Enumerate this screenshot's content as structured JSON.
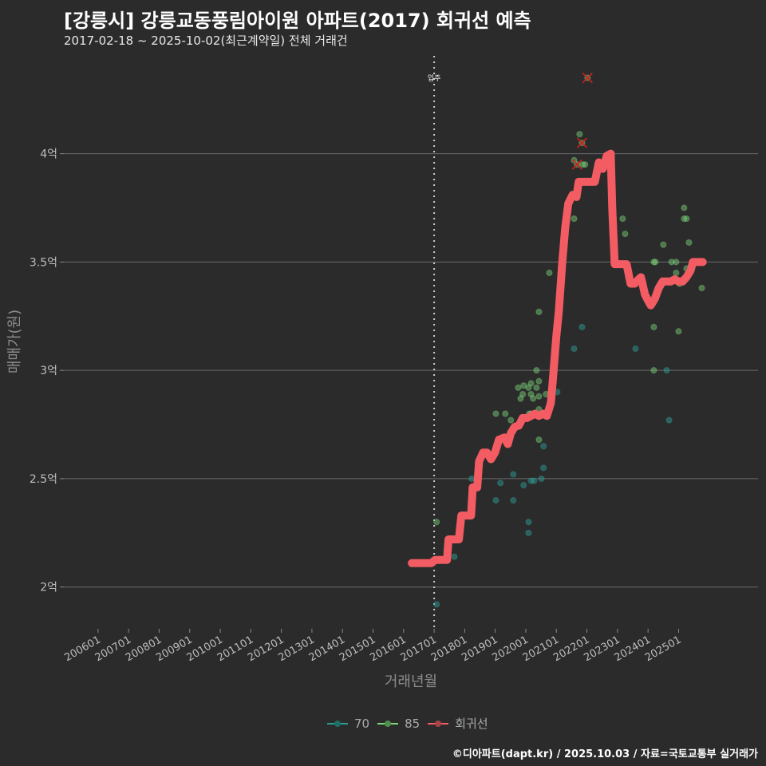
{
  "chart_data": {
    "type": "scatter",
    "title": "[강릉시] 강릉교동풍림아이원 아파트(2017) 회귀선 예측",
    "subtitle": "2017-02-18 ~ 2025-10-02(최근계약일) 전체 거래건",
    "xlabel": "거래년월",
    "ylabel": "매매가(원)",
    "xlim": [
      2004.88,
      2027.6
    ],
    "ylim": [
      1.8,
      4.47
    ],
    "y_unit": "억",
    "grid": "horizontal",
    "yticks": [
      {
        "v": 2,
        "label": "2억"
      },
      {
        "v": 2.5,
        "label": "2.5억"
      },
      {
        "v": 3,
        "label": "3억"
      },
      {
        "v": 3.5,
        "label": "3.5억"
      },
      {
        "v": 4,
        "label": "4억"
      }
    ],
    "xticks": [
      {
        "t": 2006,
        "label": "200601"
      },
      {
        "t": 2007,
        "label": "200701"
      },
      {
        "t": 2008,
        "label": "200801"
      },
      {
        "t": 2009,
        "label": "200901"
      },
      {
        "t": 2010,
        "label": "201001"
      },
      {
        "t": 2011,
        "label": "201101"
      },
      {
        "t": 2012,
        "label": "201201"
      },
      {
        "t": 2013,
        "label": "201301"
      },
      {
        "t": 2014,
        "label": "201401"
      },
      {
        "t": 2015,
        "label": "201501"
      },
      {
        "t": 2016,
        "label": "201601"
      },
      {
        "t": 2017,
        "label": "201701"
      },
      {
        "t": 2018,
        "label": "201801"
      },
      {
        "t": 2019,
        "label": "201901"
      },
      {
        "t": 2020,
        "label": "202001"
      },
      {
        "t": 2021,
        "label": "202101"
      },
      {
        "t": 2022,
        "label": "202201"
      },
      {
        "t": 2023,
        "label": "202301"
      },
      {
        "t": 2024,
        "label": "202401"
      },
      {
        "t": 2025,
        "label": "202501"
      }
    ],
    "annotation": {
      "t": 2017.0,
      "label": "입주"
    },
    "legend": {
      "position": "bottom",
      "items": [
        {
          "label": "70",
          "color": "#2a9d8f"
        },
        {
          "label": "85",
          "color": "#7fd67a"
        },
        {
          "label": "회귀선",
          "color": "#f25c62"
        }
      ]
    },
    "series": [
      {
        "name": "70",
        "color": "#2fa39a",
        "points": [
          [
            2021.84,
            3.2
          ],
          [
            2021.58,
            3.1
          ],
          [
            2023.59,
            3.1
          ],
          [
            2024.61,
            3.0
          ],
          [
            2024.69,
            2.77
          ],
          [
            2021.03,
            2.9
          ],
          [
            2020.58,
            2.65
          ],
          [
            2020.58,
            2.55
          ],
          [
            2019.59,
            2.52
          ],
          [
            2018.23,
            2.5
          ],
          [
            2019.17,
            2.48
          ],
          [
            2019.93,
            2.47
          ],
          [
            2020.17,
            2.49
          ],
          [
            2020.27,
            2.49
          ],
          [
            2020.51,
            2.5
          ],
          [
            2019.02,
            2.4
          ],
          [
            2019.59,
            2.4
          ],
          [
            2020.09,
            2.3
          ],
          [
            2020.09,
            2.25
          ],
          [
            2017.66,
            2.14
          ],
          [
            2017.08,
            1.92
          ]
        ]
      },
      {
        "name": "85",
        "color": "#7fd67a",
        "points": [
          [
            2020.43,
            3.27
          ],
          [
            2024.19,
            3.2
          ],
          [
            2025.0,
            3.18
          ],
          [
            2024.19,
            3.0
          ],
          [
            2020.35,
            3.0
          ],
          [
            2020.17,
            2.94
          ],
          [
            2020.43,
            2.95
          ],
          [
            2019.93,
            2.93
          ],
          [
            2019.75,
            2.92
          ],
          [
            2020.09,
            2.92
          ],
          [
            2020.35,
            2.92
          ],
          [
            2019.9,
            2.89
          ],
          [
            2019.83,
            2.87
          ],
          [
            2020.17,
            2.89
          ],
          [
            2020.24,
            2.87
          ],
          [
            2020.43,
            2.88
          ],
          [
            2020.66,
            2.89
          ],
          [
            2019.02,
            2.8
          ],
          [
            2019.33,
            2.8
          ],
          [
            2019.51,
            2.77
          ],
          [
            2020.11,
            2.8
          ],
          [
            2020.17,
            2.8
          ],
          [
            2020.43,
            2.82
          ],
          [
            2020.43,
            2.68
          ],
          [
            2017.08,
            2.3
          ],
          [
            2022.02,
            4.35
          ],
          [
            2021.76,
            4.09
          ],
          [
            2021.84,
            4.05
          ],
          [
            2021.58,
            3.97
          ],
          [
            2021.68,
            3.95
          ],
          [
            2021.86,
            3.95
          ],
          [
            2021.94,
            3.95
          ],
          [
            2021.58,
            3.7
          ],
          [
            2020.77,
            3.45
          ],
          [
            2023.17,
            3.7
          ],
          [
            2023.25,
            3.63
          ],
          [
            2024.5,
            3.58
          ],
          [
            2024.19,
            3.5
          ],
          [
            2024.24,
            3.5
          ],
          [
            2024.77,
            3.5
          ],
          [
            2024.92,
            3.5
          ],
          [
            2025.18,
            3.75
          ],
          [
            2025.18,
            3.7
          ],
          [
            2025.26,
            3.7
          ],
          [
            2025.34,
            3.59
          ],
          [
            2024.92,
            3.45
          ],
          [
            2025.26,
            3.47
          ],
          [
            2025.03,
            3.4
          ],
          [
            2025.76,
            3.38
          ]
        ]
      }
    ],
    "outliers": [
      [
        2022.02,
        4.35
      ],
      [
        2021.84,
        4.05
      ],
      [
        2021.68,
        3.95
      ]
    ],
    "regression": {
      "name": "회귀선",
      "color": "#f25c62",
      "points": [
        [
          2016.27,
          2.11
        ],
        [
          2016.9,
          2.11
        ],
        [
          2017.03,
          2.125
        ],
        [
          2017.42,
          2.125
        ],
        [
          2017.47,
          2.22
        ],
        [
          2017.81,
          2.22
        ],
        [
          2017.89,
          2.33
        ],
        [
          2018.21,
          2.33
        ],
        [
          2018.26,
          2.46
        ],
        [
          2018.41,
          2.46
        ],
        [
          2018.47,
          2.58
        ],
        [
          2018.6,
          2.62
        ],
        [
          2018.73,
          2.62
        ],
        [
          2018.86,
          2.59
        ],
        [
          2018.99,
          2.62
        ],
        [
          2019.12,
          2.68
        ],
        [
          2019.3,
          2.69
        ],
        [
          2019.41,
          2.66
        ],
        [
          2019.51,
          2.71
        ],
        [
          2019.64,
          2.74
        ],
        [
          2019.77,
          2.745
        ],
        [
          2019.9,
          2.78
        ],
        [
          2020.04,
          2.78
        ],
        [
          2020.17,
          2.79
        ],
        [
          2020.3,
          2.8
        ],
        [
          2020.43,
          2.79
        ],
        [
          2020.56,
          2.8
        ],
        [
          2020.69,
          2.79
        ],
        [
          2020.82,
          2.85
        ],
        [
          2020.9,
          2.98
        ],
        [
          2021.0,
          3.16
        ],
        [
          2021.08,
          3.27
        ],
        [
          2021.19,
          3.49
        ],
        [
          2021.29,
          3.66
        ],
        [
          2021.39,
          3.77
        ],
        [
          2021.53,
          3.81
        ],
        [
          2021.66,
          3.8
        ],
        [
          2021.73,
          3.87
        ],
        [
          2022.26,
          3.87
        ],
        [
          2022.39,
          3.96
        ],
        [
          2022.52,
          3.93
        ],
        [
          2022.65,
          3.99
        ],
        [
          2022.78,
          4.0
        ],
        [
          2022.83,
          3.75
        ],
        [
          2022.91,
          3.49
        ],
        [
          2023.3,
          3.49
        ],
        [
          2023.43,
          3.4
        ],
        [
          2023.56,
          3.4
        ],
        [
          2023.69,
          3.42
        ],
        [
          2023.77,
          3.43
        ],
        [
          2023.9,
          3.35
        ],
        [
          2024.01,
          3.32
        ],
        [
          2024.09,
          3.3
        ],
        [
          2024.22,
          3.33
        ],
        [
          2024.35,
          3.38
        ],
        [
          2024.48,
          3.41
        ],
        [
          2024.74,
          3.41
        ],
        [
          2024.87,
          3.42
        ],
        [
          2025.0,
          3.41
        ],
        [
          2025.13,
          3.41
        ],
        [
          2025.26,
          3.43
        ],
        [
          2025.39,
          3.46
        ],
        [
          2025.47,
          3.5
        ],
        [
          2025.65,
          3.5
        ],
        [
          2025.79,
          3.5
        ]
      ]
    },
    "caption": "©디아파트(dapt.kr) / 2025.10.03 / 자료=국토교통부 실거래가"
  }
}
